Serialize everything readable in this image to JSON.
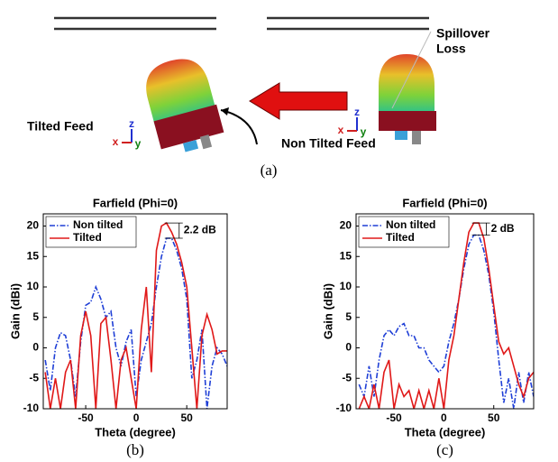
{
  "figure": {
    "caption": "(a)",
    "tilted_label": "Tilted Feed",
    "non_tilted_label": "Non Tilted Feed",
    "spillover_label": [
      "Spillover",
      "Loss"
    ],
    "axis_letters": [
      "z",
      "x",
      "y"
    ]
  },
  "chart_data": [
    {
      "type": "line",
      "title": "Farfield (Phi=0)",
      "xlabel": "Theta (degree)",
      "ylabel": "Gain (dBi)",
      "caption": "(b)",
      "annotation": "2.2 dB",
      "xlim": [
        -92,
        90
      ],
      "ylim": [
        -10,
        22
      ],
      "xticks": [
        -50,
        0,
        50
      ],
      "yticks": [
        -10,
        -5,
        0,
        5,
        10,
        15,
        20
      ],
      "legend": "upper left",
      "x": [
        -90,
        -85,
        -80,
        -75,
        -70,
        -65,
        -60,
        -55,
        -50,
        -45,
        -40,
        -35,
        -30,
        -25,
        -20,
        -15,
        -10,
        -5,
        0,
        5,
        10,
        15,
        20,
        25,
        30,
        35,
        40,
        45,
        50,
        55,
        60,
        65,
        70,
        75,
        80,
        85,
        90
      ],
      "series": [
        {
          "name": "Non tilted",
          "color": "#1f3fd6",
          "style": "dashdot",
          "values": [
            -2,
            -7,
            0,
            2.5,
            2,
            -2,
            -8,
            1,
            7,
            7.5,
            10,
            8,
            5,
            6,
            0,
            -3,
            1,
            3,
            -8,
            -2,
            1,
            4,
            10,
            15,
            18,
            18,
            16,
            13,
            8,
            -5,
            -2,
            3,
            -10,
            -3,
            0,
            -1,
            -3
          ]
        },
        {
          "name": "Tilted",
          "color": "#e01818",
          "style": "solid",
          "values": [
            -4,
            -10,
            -5,
            -10,
            -4,
            -2,
            -10,
            2,
            6,
            2,
            -10,
            4,
            5,
            -2,
            -10,
            -2,
            0,
            -5,
            -10,
            3,
            10,
            -4,
            16,
            20,
            20.5,
            19,
            17,
            14,
            10,
            0,
            -10,
            2,
            5.5,
            3,
            -1,
            -0.5,
            -0.5
          ]
        }
      ]
    },
    {
      "type": "line",
      "title": "Farfield (Phi=0)",
      "xlabel": "Theta (degree)",
      "ylabel": "Gain (dBi)",
      "caption": "(c)",
      "annotation": "2 dB",
      "xlim": [
        -88,
        90
      ],
      "ylim": [
        -10,
        22
      ],
      "xticks": [
        -50,
        0,
        50
      ],
      "yticks": [
        -10,
        -5,
        0,
        5,
        10,
        15,
        20
      ],
      "legend": "upper left",
      "x": [
        -85,
        -80,
        -75,
        -70,
        -65,
        -60,
        -55,
        -50,
        -45,
        -40,
        -35,
        -30,
        -25,
        -20,
        -15,
        -10,
        -5,
        0,
        5,
        10,
        15,
        20,
        25,
        30,
        35,
        40,
        45,
        50,
        55,
        60,
        65,
        70,
        75,
        80,
        85,
        90
      ],
      "series": [
        {
          "name": "Non tilted",
          "color": "#1f3fd6",
          "style": "dashdot",
          "values": [
            -6,
            -8,
            -3,
            -8,
            -2,
            2,
            3,
            2,
            3.5,
            4,
            2,
            2,
            0,
            0,
            -2,
            -3,
            -4,
            -3,
            1,
            4,
            8,
            13,
            17,
            18.5,
            18.5,
            16,
            12,
            6,
            -2,
            -9,
            -5,
            -10,
            -4,
            -9,
            -4,
            -8
          ]
        },
        {
          "name": "Tilted",
          "color": "#e01818",
          "style": "solid",
          "values": [
            -10,
            -8,
            -10,
            -6,
            -10,
            -4,
            -2,
            -10,
            -6,
            -8,
            -7,
            -10,
            -7,
            -10,
            -7,
            -10,
            -5,
            -10,
            -2,
            2,
            8,
            14,
            19,
            20.5,
            20.5,
            18,
            13,
            7,
            1,
            -1,
            0,
            -3,
            -6,
            -8,
            -5,
            -4
          ]
        }
      ]
    }
  ]
}
